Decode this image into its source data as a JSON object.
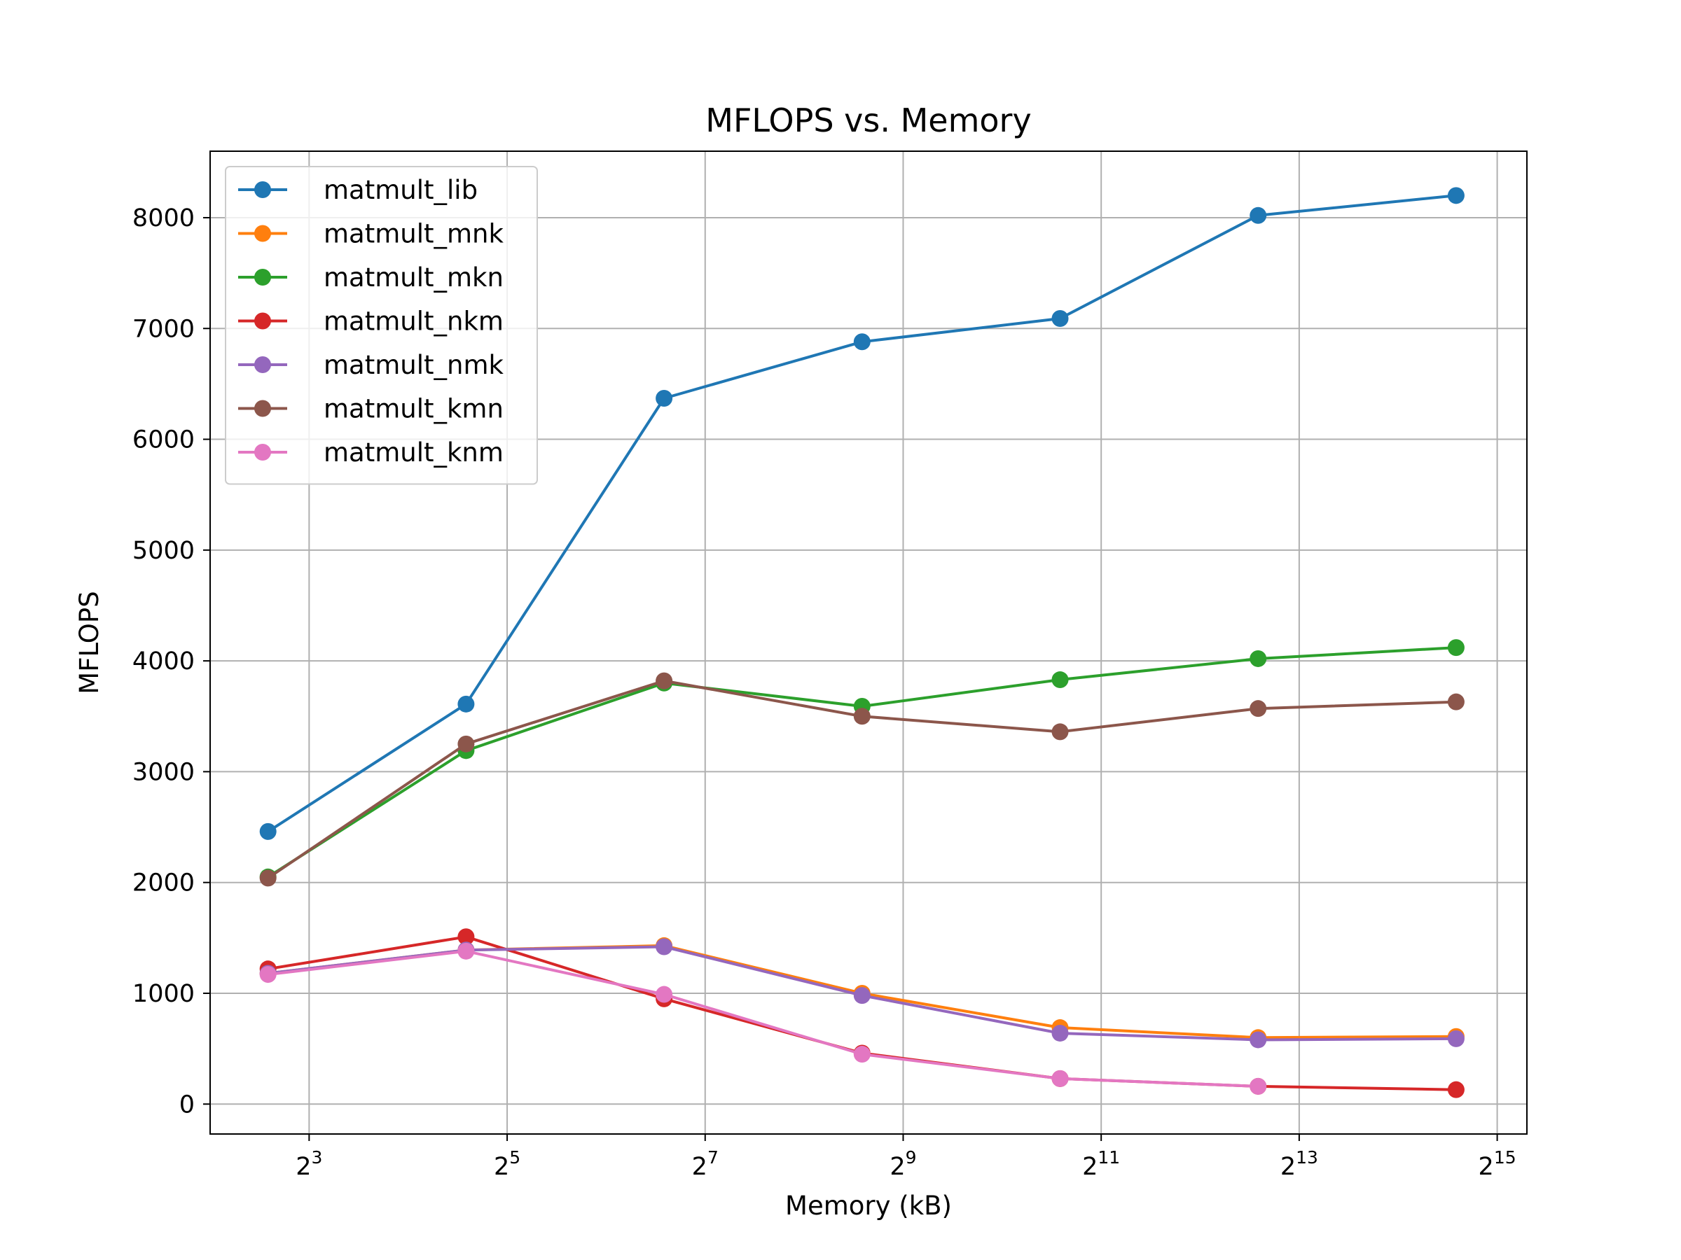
{
  "chart_data": {
    "type": "line",
    "title": "MFLOPS vs. Memory",
    "xlabel": "Memory (kB)",
    "ylabel": "MFLOPS",
    "x_scale": "log2",
    "x_tick_base": "2",
    "x_tick_exponents": [
      "3",
      "5",
      "7",
      "9",
      "11",
      "13",
      "15"
    ],
    "y_ticks": [
      "0",
      "1000",
      "2000",
      "3000",
      "4000",
      "5000",
      "6000",
      "7000",
      "8000"
    ],
    "xlim_log2": [
      2.0,
      15.3
    ],
    "ylim": [
      -270,
      8600
    ],
    "grid": true,
    "legend_position": "top-left",
    "marker": "circle",
    "x": [
      6,
      24,
      96,
      384,
      1536,
      6144,
      24576
    ],
    "series": [
      {
        "name": "matmult_lib",
        "color": "#1f77b4",
        "values": [
          2460,
          3610,
          6370,
          6880,
          7090,
          8020,
          8200
        ]
      },
      {
        "name": "matmult_mnk",
        "color": "#ff7f0e",
        "values": [
          1180,
          1390,
          1430,
          1000,
          690,
          600,
          610
        ]
      },
      {
        "name": "matmult_mkn",
        "color": "#2ca02c",
        "values": [
          2050,
          3190,
          3800,
          3590,
          3830,
          4020,
          4120
        ]
      },
      {
        "name": "matmult_nkm",
        "color": "#d62728",
        "values": [
          1220,
          1510,
          950,
          460,
          230,
          160,
          130
        ]
      },
      {
        "name": "matmult_nmk",
        "color": "#9467bd",
        "values": [
          1180,
          1390,
          1420,
          980,
          640,
          580,
          590
        ]
      },
      {
        "name": "matmult_kmn",
        "color": "#8c564b",
        "values": [
          2040,
          3250,
          3820,
          3500,
          3360,
          3570,
          3630
        ]
      },
      {
        "name": "matmult_knm",
        "color": "#e377c2",
        "values": [
          1170,
          1380,
          990,
          450,
          230,
          160,
          null
        ]
      }
    ]
  }
}
